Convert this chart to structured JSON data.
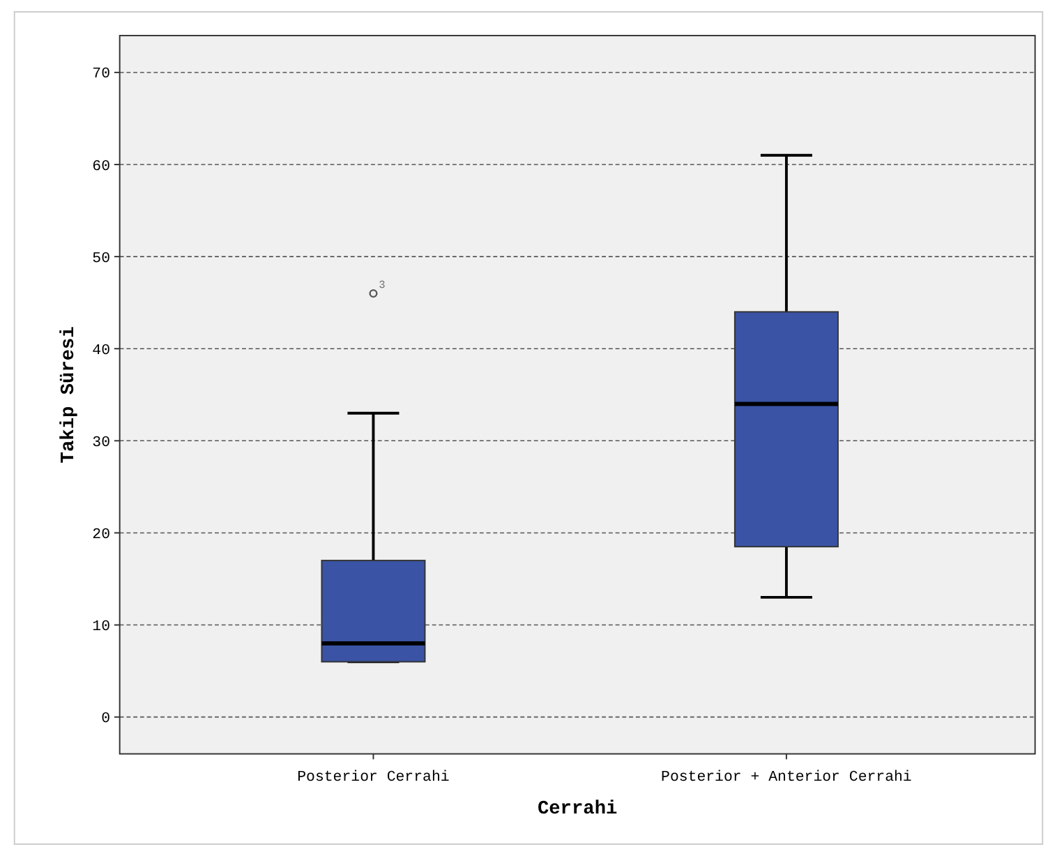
{
  "chart_data": {
    "type": "box",
    "xlabel": "Cerrahi",
    "ylabel": "Takip Süresi",
    "categories": [
      "Posterior Cerrahi",
      "Posterior + Anterior Cerrahi"
    ],
    "boxes": [
      {
        "low": 6,
        "q1": 6,
        "median": 8,
        "q3": 17,
        "high": 33,
        "outliers": [
          46
        ]
      },
      {
        "low": 13,
        "q1": 18.5,
        "median": 34,
        "q3": 44,
        "high": 61
      }
    ],
    "color": "#3a53a4",
    "ylim": [
      -4,
      74
    ],
    "yticks": [
      0,
      10,
      20,
      30,
      40,
      50,
      60,
      70
    ],
    "grid": "y",
    "annotations": [
      "3"
    ]
  }
}
